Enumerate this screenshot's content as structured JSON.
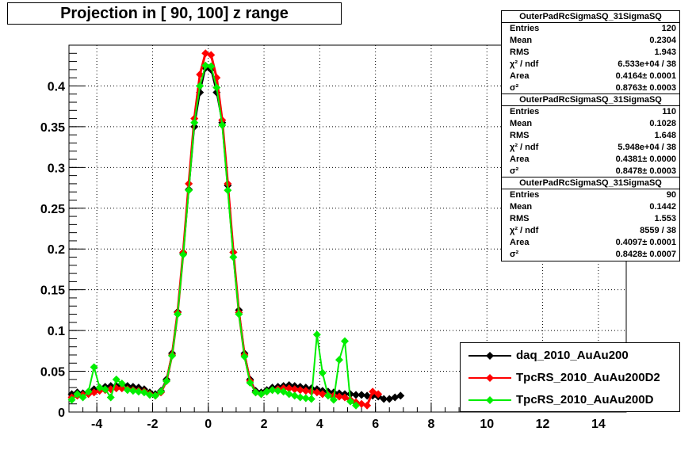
{
  "title": "Projection in [  90, 100] z range",
  "chart_data": {
    "type": "scatter",
    "xlim": [
      -5,
      15
    ],
    "ylim": [
      0,
      0.45
    ],
    "x_ticks": [
      -4,
      -2,
      0,
      2,
      4,
      6,
      8,
      10,
      12,
      14
    ],
    "x_tick_labels": [
      "-4",
      "-2",
      "0",
      "2",
      "4",
      "6",
      "8",
      "10",
      "12",
      "14"
    ],
    "y_ticks": [
      0,
      0.05,
      0.1,
      0.15,
      0.2,
      0.25,
      0.3,
      0.35,
      0.4
    ],
    "y_tick_labels": [
      "0",
      "0.05",
      "0.1",
      "0.15",
      "0.2",
      "0.25",
      "0.3",
      "0.35",
      "0.4"
    ],
    "grid": true,
    "legend_position": "bottom-right",
    "series": [
      {
        "name": "daq_2010_AuAu200",
        "color": "#000000",
        "x": [
          -4.9,
          -4.7,
          -4.5,
          -4.3,
          -4.1,
          -3.9,
          -3.7,
          -3.5,
          -3.3,
          -3.1,
          -2.9,
          -2.7,
          -2.5,
          -2.3,
          -2.1,
          -1.9,
          -1.7,
          -1.5,
          -1.3,
          -1.1,
          -0.9,
          -0.7,
          -0.5,
          -0.3,
          -0.1,
          0.1,
          0.3,
          0.5,
          0.7,
          0.9,
          1.1,
          1.3,
          1.5,
          1.7,
          1.9,
          2.1,
          2.3,
          2.5,
          2.7,
          2.9,
          3.1,
          3.3,
          3.5,
          3.7,
          3.9,
          4.1,
          4.3,
          4.5,
          4.7,
          4.9,
          5.1,
          5.3,
          5.5,
          5.7,
          5.9,
          6.1,
          6.3,
          6.5,
          6.7,
          6.9
        ],
        "y": [
          0.022,
          0.024,
          0.023,
          0.024,
          0.028,
          0.03,
          0.031,
          0.032,
          0.032,
          0.033,
          0.032,
          0.031,
          0.03,
          0.028,
          0.024,
          0.022,
          0.026,
          0.04,
          0.072,
          0.123,
          0.195,
          0.273,
          0.35,
          0.392,
          0.422,
          0.42,
          0.392,
          0.355,
          0.278,
          0.196,
          0.125,
          0.072,
          0.04,
          0.026,
          0.024,
          0.027,
          0.03,
          0.031,
          0.032,
          0.033,
          0.032,
          0.031,
          0.03,
          0.029,
          0.028,
          0.026,
          0.025,
          0.024,
          0.023,
          0.022,
          0.022,
          0.021,
          0.021,
          0.02,
          0.02,
          0.019,
          0.016,
          0.016,
          0.018,
          0.02
        ]
      },
      {
        "name": "TpcRS_2010_AuAu200D2",
        "color": "#ff0000",
        "x": [
          -4.9,
          -4.7,
          -4.5,
          -4.3,
          -4.1,
          -3.9,
          -3.7,
          -3.5,
          -3.3,
          -3.1,
          -2.9,
          -2.7,
          -2.5,
          -2.3,
          -2.1,
          -1.9,
          -1.7,
          -1.5,
          -1.3,
          -1.1,
          -0.9,
          -0.7,
          -0.5,
          -0.3,
          -0.1,
          0.1,
          0.3,
          0.5,
          0.7,
          0.9,
          1.1,
          1.3,
          1.5,
          1.7,
          1.9,
          2.1,
          2.3,
          2.5,
          2.7,
          2.9,
          3.1,
          3.3,
          3.5,
          3.7,
          3.9,
          4.1,
          4.3,
          4.5,
          4.7,
          4.9,
          5.1,
          5.3,
          5.5,
          5.7,
          5.9,
          6.1
        ],
        "y": [
          0.018,
          0.02,
          0.021,
          0.022,
          0.024,
          0.026,
          0.027,
          0.028,
          0.029,
          0.029,
          0.028,
          0.027,
          0.026,
          0.025,
          0.022,
          0.02,
          0.024,
          0.038,
          0.07,
          0.122,
          0.196,
          0.28,
          0.36,
          0.414,
          0.44,
          0.438,
          0.41,
          0.358,
          0.28,
          0.196,
          0.122,
          0.07,
          0.038,
          0.024,
          0.022,
          0.025,
          0.027,
          0.028,
          0.029,
          0.029,
          0.028,
          0.027,
          0.026,
          0.025,
          0.024,
          0.022,
          0.021,
          0.02,
          0.019,
          0.018,
          0.015,
          0.012,
          0.01,
          0.008,
          0.025,
          0.022
        ]
      },
      {
        "name": "TpcRS_2010_AuAu200D",
        "color": "#00ee00",
        "x": [
          -4.9,
          -4.7,
          -4.5,
          -4.3,
          -4.1,
          -3.9,
          -3.7,
          -3.5,
          -3.3,
          -3.1,
          -2.9,
          -2.7,
          -2.5,
          -2.3,
          -2.1,
          -1.9,
          -1.7,
          -1.5,
          -1.3,
          -1.1,
          -0.9,
          -0.7,
          -0.5,
          -0.3,
          -0.1,
          0.1,
          0.3,
          0.5,
          0.7,
          0.9,
          1.1,
          1.3,
          1.5,
          1.7,
          1.9,
          2.1,
          2.3,
          2.5,
          2.7,
          2.9,
          3.1,
          3.3,
          3.5,
          3.7,
          3.9,
          4.1,
          4.3,
          4.5,
          4.7,
          4.9,
          5.1,
          5.3
        ],
        "y": [
          0.015,
          0.022,
          0.018,
          0.025,
          0.055,
          0.03,
          0.028,
          0.018,
          0.04,
          0.035,
          0.027,
          0.026,
          0.025,
          0.024,
          0.021,
          0.02,
          0.025,
          0.038,
          0.069,
          0.12,
          0.193,
          0.272,
          0.355,
          0.4,
          0.425,
          0.424,
          0.398,
          0.352,
          0.272,
          0.19,
          0.12,
          0.068,
          0.036,
          0.024,
          0.022,
          0.025,
          0.027,
          0.026,
          0.025,
          0.022,
          0.02,
          0.018,
          0.017,
          0.016,
          0.095,
          0.048,
          0.02,
          0.015,
          0.064,
          0.087,
          0.013,
          0.008
        ]
      }
    ]
  },
  "stats": [
    {
      "title": "OuterPadRcSigmaSQ_31SigmaSQ",
      "rows": [
        [
          "Entries",
          "120"
        ],
        [
          "Mean",
          "0.2304"
        ],
        [
          "RMS",
          "1.943"
        ],
        [
          "χ² / ndf",
          "6.533e+04 / 38"
        ],
        [
          "Area",
          "0.4164± 0.0001"
        ],
        [
          "σ²",
          "0.8763± 0.0003"
        ]
      ]
    },
    {
      "title": "OuterPadRcSigmaSQ_31SigmaSQ",
      "rows": [
        [
          "Entries",
          "110"
        ],
        [
          "Mean",
          "0.1028"
        ],
        [
          "RMS",
          "1.648"
        ],
        [
          "χ² / ndf",
          "5.948e+04 / 38"
        ],
        [
          "Area",
          "0.4381± 0.0000"
        ],
        [
          "σ²",
          "0.8478± 0.0003"
        ]
      ]
    },
    {
      "title": "OuterPadRcSigmaSQ_31SigmaSQ",
      "rows": [
        [
          "Entries",
          "90"
        ],
        [
          "Mean",
          "0.1442"
        ],
        [
          "RMS",
          "1.553"
        ],
        [
          "χ² / ndf",
          "8559 / 38"
        ],
        [
          "Area",
          "0.4097± 0.0001"
        ],
        [
          "σ²",
          "0.8428± 0.0007"
        ]
      ]
    }
  ]
}
